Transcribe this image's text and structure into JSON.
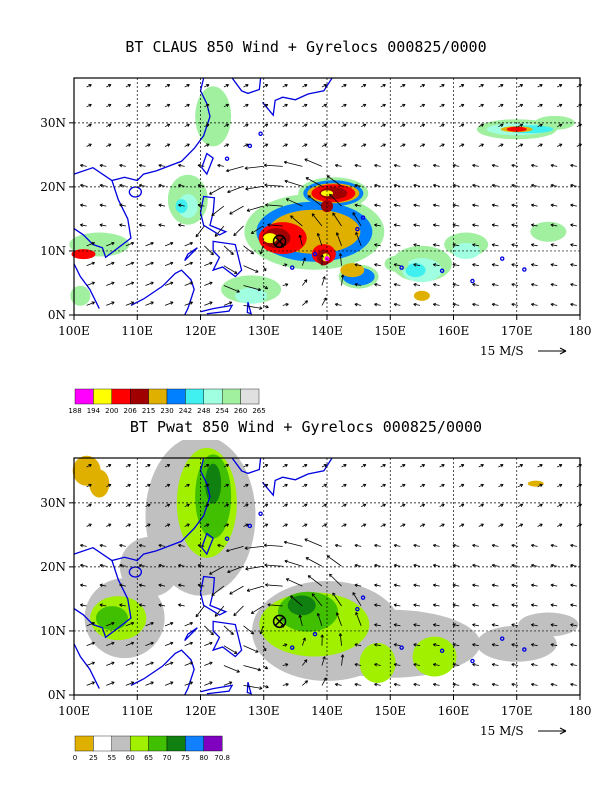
{
  "panels": [
    {
      "title": "BT CLAUS 850 Wind + Gyrelocs 000825/0000",
      "field": "CLAUS",
      "legend": {
        "labels": [
          "188",
          "194",
          "200",
          "206",
          "215",
          "230",
          "242",
          "248",
          "254",
          "260",
          "265"
        ],
        "colors": [
          "#ff00ff",
          "#ffff00",
          "#ff0000",
          "#a00000",
          "#e0b000",
          "#0080ff",
          "#40f0f0",
          "#a0ffe0",
          "#a0f0a0",
          "#e0e0e0"
        ]
      }
    },
    {
      "title": "BT Pwat 850 Wind + Gyrelocs 000825/0000",
      "field": "Pwat",
      "legend": {
        "labels": [
          "0",
          "25",
          "55",
          "60",
          "65",
          "70",
          "75",
          "80",
          "70.8"
        ],
        "colors": [
          "#e0b000",
          "#ffffff",
          "#c0c0c0",
          "#a0f000",
          "#40c000",
          "#108010",
          "#1080ff",
          "#8000c0"
        ]
      }
    }
  ],
  "axes": {
    "x_ticks": [
      "100E",
      "110E",
      "120E",
      "130E",
      "140E",
      "150E",
      "160E",
      "170E",
      "180"
    ],
    "y_ticks": [
      "0N",
      "10N",
      "20N",
      "30N"
    ],
    "x_range": [
      100,
      180
    ],
    "y_range": [
      0,
      37
    ]
  },
  "wind_scale_label": "15 M/S",
  "gyre_locations": [
    [
      132.5,
      11.5
    ]
  ],
  "colors": {
    "coast": "#0000e0",
    "grid": "#000000"
  }
}
